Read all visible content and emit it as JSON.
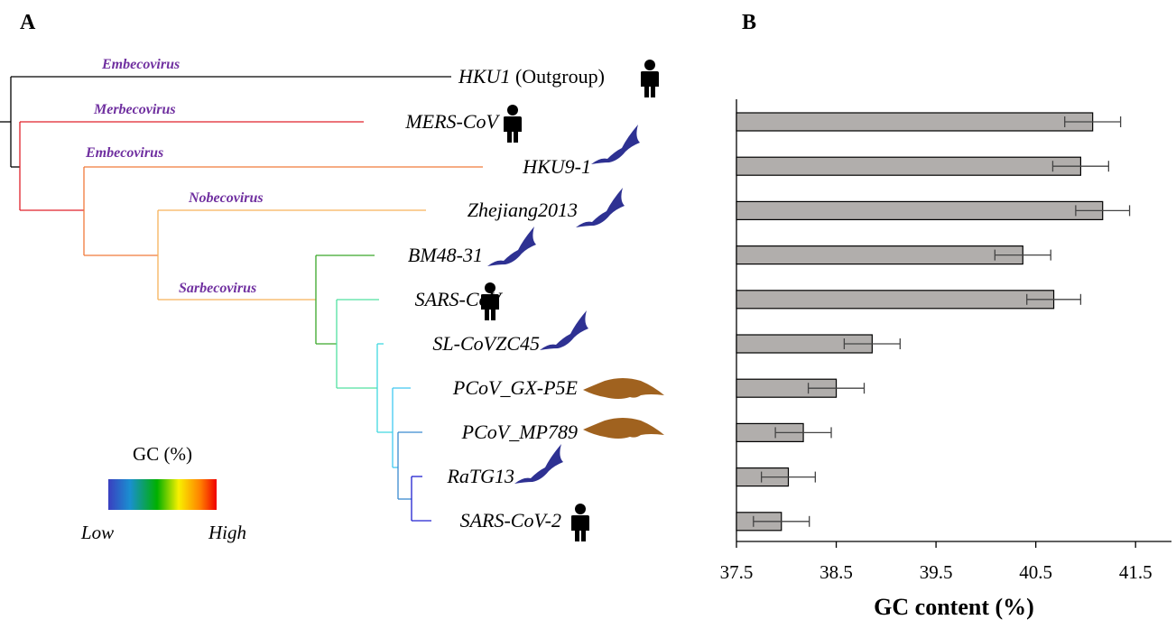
{
  "tree": {
    "panel_label": "A",
    "clades": [
      "Embecovirus",
      "Merbecovirus",
      "Embecovirus",
      "Nobecovirus",
      "Sarbecovirus"
    ],
    "taxa": [
      "HKU1",
      "MERS-CoV",
      "HKU9-1",
      "Zhejiang2013",
      "BM48-31",
      "SARS-CoV",
      "SL-CoVZC45",
      "PCoV_GX-P5E",
      "PCoV_MP789",
      "RaTG13",
      "SARS-CoV-2"
    ],
    "outgroup_note": "(Outgroup)",
    "legend": {
      "title": "GC (%)",
      "low": "Low",
      "high": "High"
    }
  },
  "chart_data": {
    "type": "bar",
    "panel_label": "B",
    "x_label": "GC content (%)",
    "values": [
      41.07,
      40.95,
      41.17,
      40.37,
      40.68,
      38.86,
      38.5,
      38.17,
      38.02,
      37.95
    ],
    "errors": [
      0.28,
      0.28,
      0.27,
      0.28,
      0.27,
      0.28,
      0.28,
      0.28,
      0.27,
      0.28
    ],
    "color": "#b1aeac",
    "xlim": [
      37.5,
      41.86
    ],
    "xticks": [
      37.5,
      38.5,
      39.5,
      40.5,
      41.5
    ]
  }
}
